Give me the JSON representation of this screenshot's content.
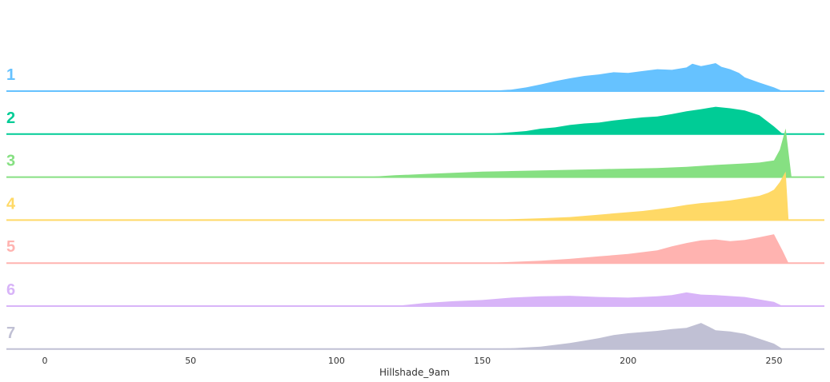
{
  "chart_data": {
    "type": "area",
    "subtype": "ridgeline",
    "title": "",
    "xlabel": "Hillshade_9am",
    "ylabel": "",
    "xlim": [
      -13,
      268
    ],
    "xticks": [
      "0",
      "50",
      "100",
      "150",
      "200",
      "250"
    ],
    "grid": false,
    "legend": "none",
    "series": [
      {
        "name": "1",
        "color": "#66c2ff",
        "x": [
          150,
          155,
          160,
          165,
          170,
          175,
          180,
          185,
          190,
          195,
          200,
          205,
          210,
          215,
          220,
          222,
          225,
          228,
          230,
          232,
          235,
          238,
          240,
          245,
          250,
          253
        ],
        "values": [
          0.0,
          0.02,
          0.05,
          0.12,
          0.22,
          0.33,
          0.42,
          0.5,
          0.55,
          0.62,
          0.6,
          0.66,
          0.72,
          0.7,
          0.78,
          0.9,
          0.82,
          0.88,
          0.92,
          0.8,
          0.72,
          0.6,
          0.45,
          0.28,
          0.12,
          0.0
        ]
      },
      {
        "name": "2",
        "color": "#00cc96",
        "x": [
          148,
          155,
          160,
          165,
          170,
          175,
          180,
          185,
          190,
          195,
          200,
          205,
          210,
          215,
          220,
          225,
          230,
          235,
          240,
          245,
          250,
          253
        ],
        "values": [
          0.0,
          0.03,
          0.06,
          0.1,
          0.18,
          0.22,
          0.3,
          0.35,
          0.38,
          0.45,
          0.5,
          0.55,
          0.58,
          0.66,
          0.75,
          0.82,
          0.9,
          0.85,
          0.78,
          0.62,
          0.25,
          0.0
        ]
      },
      {
        "name": "3",
        "color": "#86e082",
        "x": [
          110,
          120,
          130,
          140,
          150,
          160,
          170,
          180,
          190,
          200,
          210,
          220,
          230,
          240,
          245,
          250,
          252,
          254,
          256
        ],
        "values": [
          0.0,
          0.06,
          0.1,
          0.14,
          0.18,
          0.2,
          0.22,
          0.24,
          0.26,
          0.28,
          0.3,
          0.34,
          0.4,
          0.45,
          0.48,
          0.55,
          0.9,
          1.6,
          0.0
        ]
      },
      {
        "name": "4",
        "color": "#ffd966",
        "x": [
          150,
          160,
          170,
          175,
          180,
          185,
          190,
          195,
          200,
          205,
          210,
          215,
          220,
          225,
          230,
          235,
          240,
          245,
          248,
          250,
          252,
          254,
          255
        ],
        "values": [
          0.0,
          0.03,
          0.06,
          0.08,
          0.1,
          0.14,
          0.18,
          0.22,
          0.26,
          0.3,
          0.36,
          0.42,
          0.5,
          0.56,
          0.6,
          0.65,
          0.72,
          0.8,
          0.9,
          1.0,
          1.25,
          1.6,
          0.0
        ]
      },
      {
        "name": "5",
        "color": "#ffb3b0",
        "x": [
          150,
          160,
          170,
          180,
          190,
          200,
          205,
          210,
          215,
          220,
          225,
          230,
          235,
          240,
          245,
          250,
          253,
          255
        ],
        "values": [
          0.0,
          0.04,
          0.08,
          0.14,
          0.22,
          0.3,
          0.36,
          0.42,
          0.55,
          0.66,
          0.75,
          0.78,
          0.72,
          0.76,
          0.85,
          0.95,
          0.4,
          0.0
        ]
      },
      {
        "name": "6",
        "color": "#d8b4f8",
        "x": [
          120,
          130,
          140,
          150,
          160,
          170,
          180,
          190,
          200,
          210,
          215,
          220,
          225,
          230,
          240,
          250,
          253
        ],
        "values": [
          0.0,
          0.1,
          0.16,
          0.2,
          0.28,
          0.32,
          0.34,
          0.3,
          0.28,
          0.32,
          0.36,
          0.45,
          0.38,
          0.36,
          0.3,
          0.14,
          0.0
        ]
      },
      {
        "name": "7",
        "color": "#c0c0d4",
        "x": [
          150,
          160,
          170,
          175,
          180,
          185,
          190,
          195,
          200,
          205,
          210,
          215,
          220,
          225,
          228,
          230,
          235,
          240,
          245,
          250,
          253
        ],
        "values": [
          0.0,
          0.03,
          0.08,
          0.14,
          0.2,
          0.28,
          0.36,
          0.46,
          0.52,
          0.56,
          0.6,
          0.66,
          0.7,
          0.86,
          0.72,
          0.62,
          0.58,
          0.5,
          0.34,
          0.18,
          0.0
        ]
      }
    ]
  }
}
